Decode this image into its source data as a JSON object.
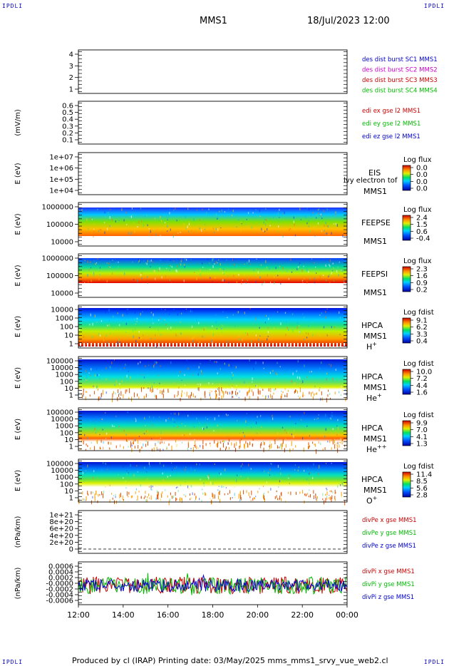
{
  "corners": {
    "tl": "IPDLI",
    "tr": "IPDLI",
    "bl": "IPDLI",
    "br": "IPDLI"
  },
  "header": {
    "spacecraft": "MMS1",
    "datetime": "18/Jul/2023 12:00"
  },
  "footer": {
    "text": "Produced by cl (IRAP)   Printing date: 03/May/2025   mms_mms1_srvy_vue_web2.cl"
  },
  "colors": {
    "blue": "#0000cc",
    "magenta": "#cc00cc",
    "red": "#cc0000",
    "green": "#00bb00"
  },
  "chart_data": [
    {
      "id": "burst",
      "type": "line",
      "ylabel": "",
      "yticks": [
        "4",
        "3",
        "2",
        "1"
      ],
      "legend": [
        {
          "text": "des dist burst SC1 MMS1",
          "color": "blue"
        },
        {
          "text": "des dist burst SC2 MMS2",
          "color": "magenta"
        },
        {
          "text": "des dist burst SC3 MMS3",
          "color": "red"
        },
        {
          "text": "des dist burst SC4 MMS4",
          "color": "green"
        }
      ],
      "series": []
    },
    {
      "id": "edi",
      "type": "line",
      "ylabel": "(mV/m)",
      "yticks": [
        "0.6",
        "0.5",
        "0.4",
        "0.3",
        "0.2",
        "0.1"
      ],
      "legend": [
        {
          "text": "edi ex gse l2 MMS1",
          "color": "red"
        },
        {
          "text": "edi ey gse l2 MMS1",
          "color": "green"
        },
        {
          "text": "edi ez gse l2 MMS1",
          "color": "blue"
        }
      ],
      "series": []
    },
    {
      "id": "eis",
      "type": "heatmap",
      "ylabel": "E (eV)",
      "yticks": [
        "1e+07",
        "1e+06",
        "1e+05",
        "1e+04"
      ],
      "labels": [
        "EIS",
        "MMS1"
      ],
      "overlay": "lvy electron tof",
      "cbar": {
        "title": "Log flux",
        "ticks": [
          "0.0",
          "0.0",
          "0.0",
          "0.0"
        ]
      }
    },
    {
      "id": "feepse",
      "type": "heatmap",
      "ylabel": "E (eV)",
      "yticks": [
        "1000000",
        "100000",
        "10000"
      ],
      "labels": [
        "FEEPSE",
        "MMS1"
      ],
      "cbar": {
        "title": "Log flux",
        "ticks": [
          "2.4",
          "1.5",
          "0.6",
          "-0.4"
        ]
      }
    },
    {
      "id": "feepsi",
      "type": "heatmap",
      "ylabel": "E (eV)",
      "yticks": [
        "1000000",
        "100000",
        "10000"
      ],
      "labels": [
        "FEEPSI",
        "MMS1"
      ],
      "cbar": {
        "title": "Log flux",
        "ticks": [
          "2.3",
          "1.6",
          "0.9",
          "0.2"
        ]
      }
    },
    {
      "id": "hpca_h",
      "type": "heatmap",
      "ylabel": "E (eV)",
      "yticks": [
        "10000",
        "1000",
        "100",
        "10",
        "1"
      ],
      "labels": [
        "HPCA",
        "MMS1"
      ],
      "species": "H",
      "charge": "+",
      "cbar": {
        "title": "Log fdist",
        "ticks": [
          "9.1",
          "6.2",
          "3.3",
          "0.4"
        ]
      }
    },
    {
      "id": "hpca_he",
      "type": "heatmap",
      "ylabel": "E (eV)",
      "yticks": [
        "100000",
        "10000",
        "1000",
        "100",
        "10",
        "1"
      ],
      "labels": [
        "HPCA",
        "MMS1"
      ],
      "species": "He",
      "charge": "+",
      "cbar": {
        "title": "Log fdist",
        "ticks": [
          "10.0",
          "7.2",
          "4.4",
          "1.6"
        ]
      }
    },
    {
      "id": "hpca_hepp",
      "type": "heatmap",
      "ylabel": "E (eV)",
      "yticks": [
        "100000",
        "10000",
        "1000",
        "100",
        "10",
        "1"
      ],
      "labels": [
        "HPCA",
        "MMS1"
      ],
      "species": "He",
      "charge": "++",
      "cbar": {
        "title": "Log fdist",
        "ticks": [
          "9.9",
          "7.0",
          "4.1",
          "1.3"
        ]
      }
    },
    {
      "id": "hpca_o",
      "type": "heatmap",
      "ylabel": "E (eV)",
      "yticks": [
        "100000",
        "10000",
        "1000",
        "100",
        "10",
        "1"
      ],
      "labels": [
        "HPCA",
        "MMS1"
      ],
      "species": "O",
      "charge": "+",
      "cbar": {
        "title": "Log fdist",
        "ticks": [
          "11.4",
          "8.5",
          "5.6",
          "2.8"
        ]
      }
    },
    {
      "id": "divpe",
      "type": "line",
      "ylabel": "(nPa/km)",
      "yticks": [
        "1e+21",
        "8e+20",
        "6e+20",
        "4e+20",
        "2e+20",
        "0"
      ],
      "legend": [
        {
          "text": "divPe x gse MMS1",
          "color": "red"
        },
        {
          "text": "divPe y gse MMS1",
          "color": "green"
        },
        {
          "text": "divPe z gse MMS1",
          "color": "blue"
        }
      ],
      "series": []
    },
    {
      "id": "divpi",
      "type": "line",
      "ylabel": "(nPa/km)",
      "yticks": [
        "0.0006",
        "0.0004",
        "0.0002",
        "-0.0000",
        "-0.0002",
        "-0.0004",
        "-0.0006"
      ],
      "ylim": [
        -0.0006,
        0.0006
      ],
      "legend": [
        {
          "text": "divPi x gse MMS1",
          "color": "red"
        },
        {
          "text": "divPi y gse MMS1",
          "color": "green"
        },
        {
          "text": "divPi z gse MMS1",
          "color": "blue"
        }
      ]
    }
  ],
  "xaxis": {
    "ticks": [
      "12:00",
      "14:00",
      "16:00",
      "18:00",
      "20:00",
      "22:00",
      "00:00"
    ]
  }
}
